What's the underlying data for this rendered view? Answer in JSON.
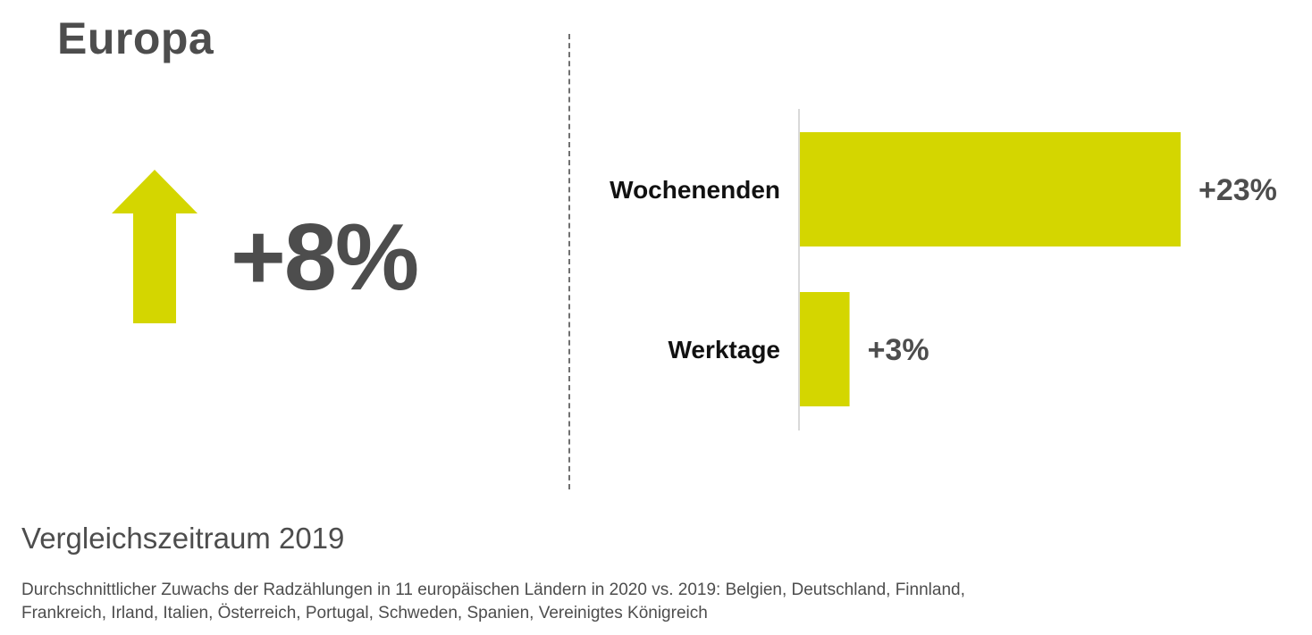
{
  "region": "Europa",
  "overall_change": "+8%",
  "subtitle": "Vergleichszeitraum 2019",
  "footnote": "Durchschnittlicher Zuwachs der Radzählungen in 11 europäischen Ländern in 2020 vs. 2019: Belgien, Deutschland, Finnland, Frankreich, Irland, Italien, Österreich, Portugal, Schweden, Spanien, Vereinigtes Königreich",
  "colors": {
    "accent": "#d4d600",
    "text": "#4d4d4d",
    "label": "#111111",
    "axis": "#d9d9d9"
  },
  "arrow_icon": "up-arrow-icon",
  "chart_data": {
    "type": "bar",
    "orientation": "horizontal",
    "categories": [
      "Wochenenden",
      "Werktage"
    ],
    "values": [
      23,
      3
    ],
    "value_labels": [
      "+23%",
      "+3%"
    ],
    "unit": "%",
    "xlim": [
      0,
      23
    ],
    "grid": false,
    "legend": "none"
  }
}
